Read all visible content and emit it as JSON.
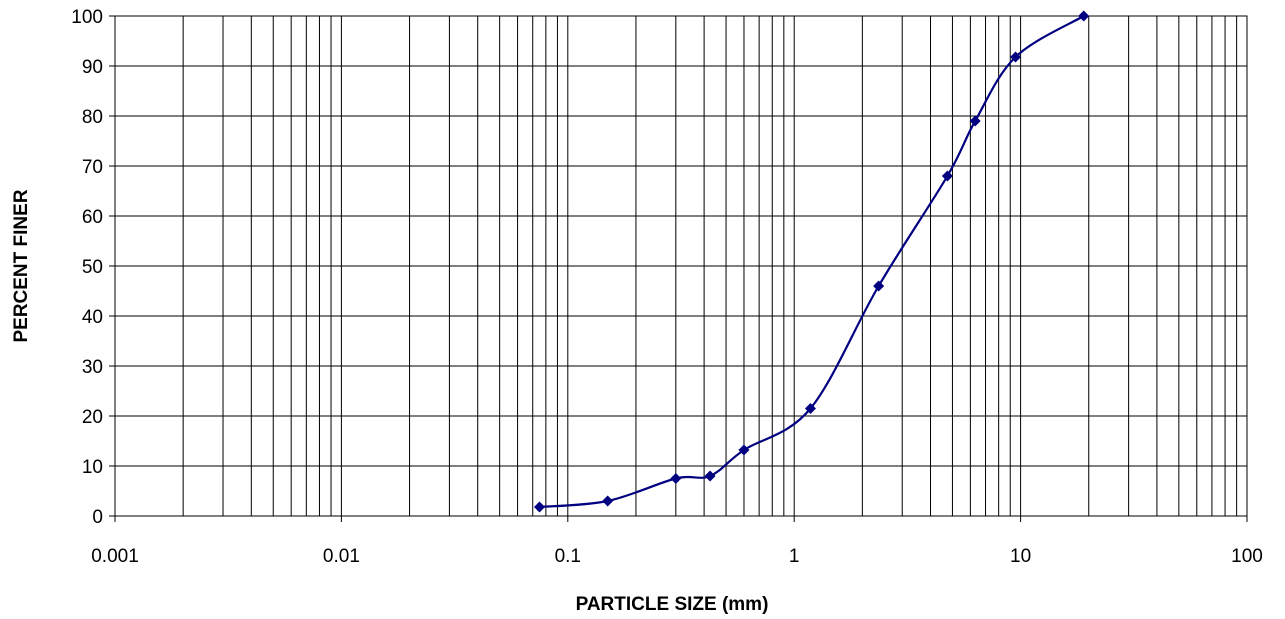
{
  "chart_data": {
    "type": "scatter",
    "title": "",
    "xlabel": "PARTICLE SIZE (mm)",
    "ylabel": "PERCENT FINER",
    "xscale": "log",
    "xlim": [
      0.001,
      100
    ],
    "ylim": [
      0,
      100
    ],
    "x_ticks": [
      0.001,
      0.01,
      0.1,
      1,
      10,
      100
    ],
    "x_tick_labels": [
      "0.001",
      "0.01",
      "0.1",
      "1",
      "10",
      "100"
    ],
    "y_ticks": [
      0,
      10,
      20,
      30,
      40,
      50,
      60,
      70,
      80,
      90,
      100
    ],
    "y_tick_labels": [
      "0",
      "10",
      "20",
      "30",
      "40",
      "50",
      "60",
      "70",
      "80",
      "90",
      "100"
    ],
    "grid": true,
    "legend": "none",
    "series": [
      {
        "marker": "diamond",
        "smooth_line": true,
        "color": "#000080",
        "x": [
          0.075,
          0.15,
          0.3,
          0.425,
          0.6,
          1.18,
          2.36,
          4.75,
          6.3,
          9.5,
          19.0
        ],
        "y": [
          1.8,
          3.0,
          7.5,
          8.0,
          13.2,
          21.5,
          46.0,
          68.0,
          79.0,
          91.8,
          100.0
        ]
      }
    ]
  }
}
